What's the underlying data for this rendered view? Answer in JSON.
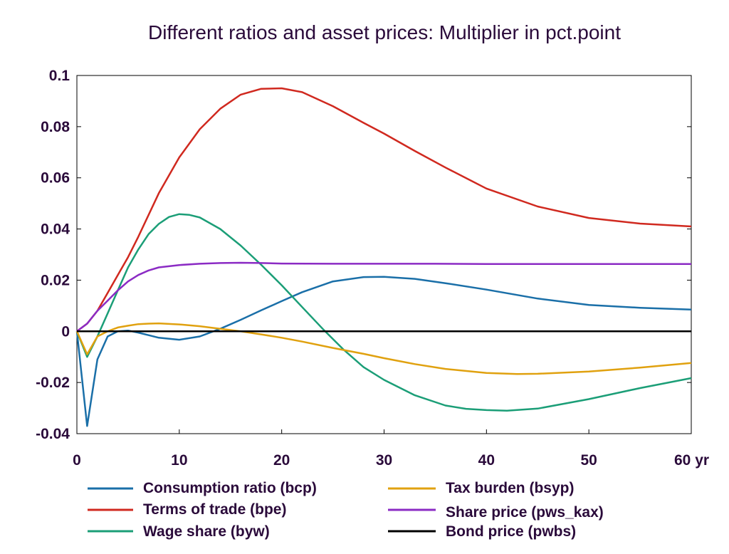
{
  "chart_data": {
    "type": "line",
    "title": "Different ratios and asset prices: Multiplier in pct.point",
    "x_unit_label": "60 yr",
    "xlim": [
      0,
      60
    ],
    "ylim": [
      -0.04,
      0.1
    ],
    "x_ticks": [
      0,
      10,
      20,
      30,
      40,
      50,
      60
    ],
    "x_tick_labels": [
      "0",
      "10",
      "20",
      "30",
      "40",
      "50",
      "60 yr"
    ],
    "y_ticks": [
      -0.04,
      -0.02,
      0,
      0.02,
      0.04,
      0.06,
      0.08,
      0.1
    ],
    "y_tick_labels": [
      "-0.04",
      "-0.02",
      "0",
      "0.02",
      "0.04",
      "0.06",
      "0.08",
      "0.1"
    ],
    "grid": false,
    "legend_position": "bottom",
    "series": [
      {
        "name": "Consumption ratio (bcp)",
        "color": "#1a6fa8",
        "x": [
          0,
          1,
          2,
          3,
          4,
          5,
          6,
          7,
          8,
          10,
          12,
          14,
          16,
          18,
          20,
          22,
          25,
          28,
          30,
          33,
          36,
          40,
          45,
          50,
          55,
          60
        ],
        "y": [
          0,
          -0.037,
          -0.011,
          -0.002,
          0.0,
          0.0003,
          -0.0005,
          -0.0015,
          -0.0025,
          -0.0033,
          -0.002,
          0.001,
          0.0045,
          0.0082,
          0.0118,
          0.0153,
          0.0195,
          0.0212,
          0.0213,
          0.0205,
          0.0188,
          0.0163,
          0.0128,
          0.0103,
          0.0092,
          0.0085
        ]
      },
      {
        "name": "Terms of trade (bpe)",
        "color": "#d0291f",
        "x": [
          0,
          1,
          2,
          3,
          4,
          5,
          6,
          8,
          10,
          12,
          14,
          16,
          18,
          20,
          22,
          25,
          28,
          30,
          33,
          36,
          40,
          45,
          50,
          55,
          60
        ],
        "y": [
          0,
          0.003,
          0.008,
          0.015,
          0.022,
          0.029,
          0.037,
          0.054,
          0.068,
          0.079,
          0.087,
          0.0925,
          0.0948,
          0.095,
          0.0935,
          0.088,
          0.0815,
          0.0773,
          0.0705,
          0.064,
          0.0558,
          0.0488,
          0.0443,
          0.0421,
          0.041
        ]
      },
      {
        "name": "Wage share (byw)",
        "color": "#1b9e77",
        "x": [
          0,
          1,
          2,
          3,
          4,
          5,
          6,
          7,
          8,
          9,
          10,
          11,
          12,
          14,
          16,
          18,
          20,
          22,
          24,
          26,
          28,
          30,
          33,
          36,
          38,
          40,
          42,
          45,
          50,
          55,
          60
        ],
        "y": [
          0,
          -0.01,
          -0.002,
          0.007,
          0.016,
          0.025,
          0.032,
          0.038,
          0.042,
          0.0447,
          0.0458,
          0.0455,
          0.0445,
          0.04,
          0.0335,
          0.026,
          0.018,
          0.0095,
          0.001,
          -0.007,
          -0.014,
          -0.019,
          -0.025,
          -0.029,
          -0.0303,
          -0.0308,
          -0.031,
          -0.0302,
          -0.0265,
          -0.0222,
          -0.0183
        ]
      },
      {
        "name": "Tax burden (bsyp)",
        "color": "#e0a10f",
        "x": [
          0,
          1,
          2,
          3,
          4,
          5,
          6,
          7,
          8,
          10,
          12,
          14,
          16,
          18,
          20,
          22,
          25,
          28,
          30,
          33,
          36,
          40,
          43,
          45,
          50,
          55,
          60
        ],
        "y": [
          0,
          -0.009,
          -0.002,
          0.0,
          0.0015,
          0.0022,
          0.0028,
          0.003,
          0.0031,
          0.0027,
          0.002,
          0.001,
          0.0,
          -0.0012,
          -0.0025,
          -0.004,
          -0.0065,
          -0.0088,
          -0.0105,
          -0.0128,
          -0.0147,
          -0.0163,
          -0.0167,
          -0.0166,
          -0.0157,
          -0.0142,
          -0.0124
        ]
      },
      {
        "name": "Share price (pws_kax)",
        "color": "#8b2bc4",
        "x": [
          0,
          1,
          2,
          3,
          4,
          5,
          6,
          7,
          8,
          10,
          12,
          14,
          16,
          18,
          20,
          25,
          30,
          35,
          40,
          45,
          50,
          55,
          60
        ],
        "y": [
          0,
          0.003,
          0.008,
          0.012,
          0.016,
          0.0195,
          0.022,
          0.0238,
          0.025,
          0.0259,
          0.0264,
          0.0267,
          0.0268,
          0.0267,
          0.0265,
          0.0264,
          0.0264,
          0.0264,
          0.0263,
          0.0263,
          0.0263,
          0.0263,
          0.0263
        ]
      },
      {
        "name": "Bond price (pwbs)",
        "color": "#000000",
        "x": [
          0,
          60
        ],
        "y": [
          0,
          0
        ]
      }
    ]
  }
}
